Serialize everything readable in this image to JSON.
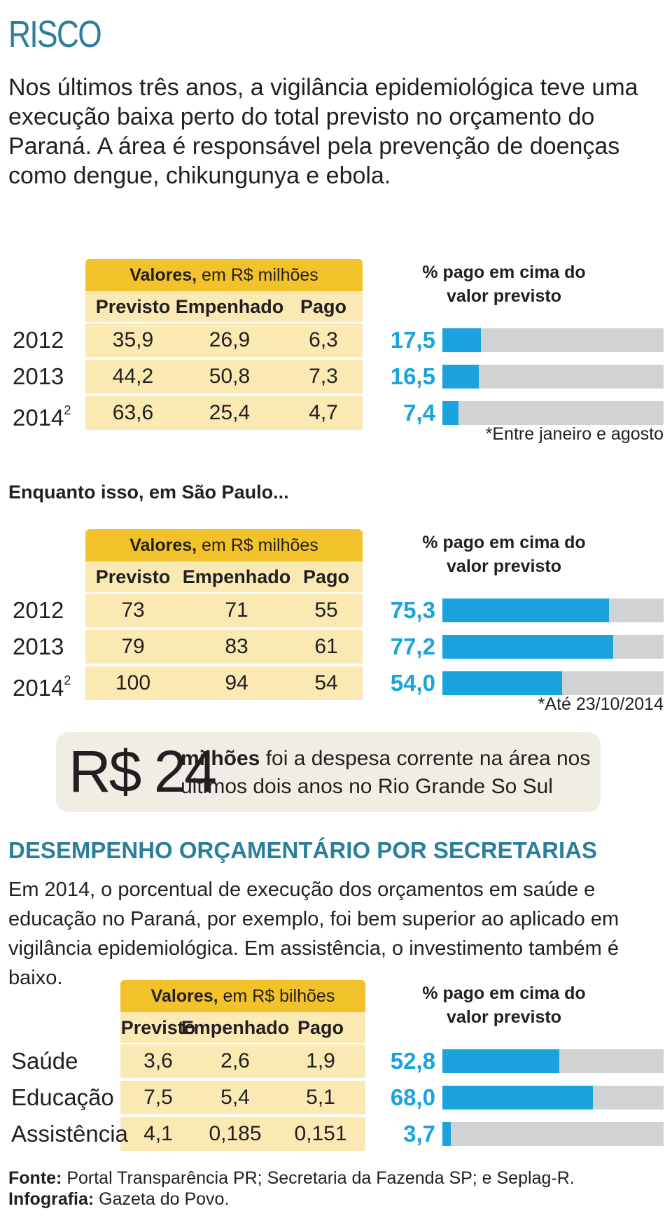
{
  "title": "RISCO",
  "intro": "Nos últimos três anos, a vigilância epidemiológica teve uma execução baixa perto do total previsto no orçamento do Paraná. A área é responsável pela prevenção de doenças como dengue, chikungunya e ebola.",
  "subheading": "Enquanto isso, em São Paulo...",
  "callout": {
    "value": "R$ 24",
    "bold": "milhões",
    "text": " foi a despesa corrente na área nos últimos dois anos no Rio Grande So Sul"
  },
  "section": {
    "title": "DESEMPENHO ORÇAMENTÁRIO POR SECRETARIAS",
    "text": "Em 2014, o porcentual de execução dos orçamentos em saúde e educação no Paraná, por exemplo, foi bem superior ao aplicado em vigilância epidemiológica. Em assistência, o investimento também é baixo."
  },
  "source": {
    "fonte_label": "Fonte:",
    "fonte": " Portal Transparência PR; Secretaria da Fazenda SP; e Seplag-R.",
    "infografia_label": "Infografia:",
    "infografia": " Gazeta do Povo."
  },
  "colors": {
    "accent": "#1aa3dc",
    "header": "#f2c22a",
    "row": "#fbe9b4",
    "bar_bg": "#d1d2d4",
    "title": "#2b7f9c"
  },
  "chart_data": [
    {
      "type": "table",
      "header_bold": "Valores,",
      "header_rest": " em R$ milhões",
      "columns": [
        "Previsto",
        "Empenhado",
        "Pago"
      ],
      "rows": [
        {
          "label": "2012",
          "sup": "",
          "values": [
            "35,9",
            "26,9",
            "6,3"
          ]
        },
        {
          "label": "2013",
          "sup": "",
          "values": [
            "44,2",
            "50,8",
            "7,3"
          ]
        },
        {
          "label": "2014",
          "sup": "2",
          "values": [
            "63,6",
            "25,4",
            "4,7"
          ]
        }
      ],
      "pct_title_1": "% pago em cima do",
      "pct_title_2": "valor previsto",
      "pct_labels": [
        "17,5",
        "16,5",
        "7,4"
      ],
      "pct_values": [
        17.5,
        16.5,
        7.4
      ],
      "note": "*Entre janeiro e agosto"
    },
    {
      "type": "table",
      "header_bold": "Valores,",
      "header_rest": " em R$ milhões",
      "columns": [
        "Previsto",
        "Empenhado",
        "Pago"
      ],
      "rows": [
        {
          "label": "2012",
          "sup": "",
          "values": [
            "73",
            "71",
            "55"
          ]
        },
        {
          "label": "2013",
          "sup": "",
          "values": [
            "79",
            "83",
            "61"
          ]
        },
        {
          "label": "2014",
          "sup": "2",
          "values": [
            "100",
            "94",
            "54"
          ]
        }
      ],
      "pct_title_1": "% pago em cima do",
      "pct_title_2": "valor previsto",
      "pct_labels": [
        "75,3",
        "77,2",
        "54,0"
      ],
      "pct_values": [
        75.3,
        77.2,
        54.0
      ],
      "note": "*Até 23/10/2014"
    },
    {
      "type": "table",
      "header_bold": "Valores,",
      "header_rest": " em R$ bilhões",
      "columns": [
        "Previsto",
        "Empenhado",
        "Pago"
      ],
      "rows": [
        {
          "label": "Saúde",
          "sup": "",
          "values": [
            "3,6",
            "2,6",
            "1,9"
          ]
        },
        {
          "label": "Educação",
          "sup": "",
          "values": [
            "7,5",
            "5,4",
            "5,1"
          ]
        },
        {
          "label": "Assistência",
          "sup": "",
          "values": [
            "4,1",
            "0,185",
            "0,151"
          ]
        }
      ],
      "pct_title_1": "% pago em cima do",
      "pct_title_2": "valor previsto",
      "pct_labels": [
        "52,8",
        "68,0",
        "3,7"
      ],
      "pct_values": [
        52.8,
        68.0,
        3.7
      ],
      "note": ""
    }
  ]
}
